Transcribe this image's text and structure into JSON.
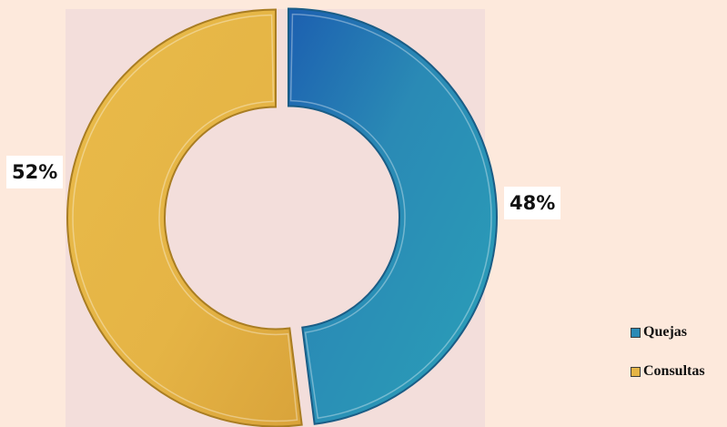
{
  "colors": {
    "background": "#fde9dc",
    "plot_area": "#f3dedb",
    "quejas": "#2a8ab5",
    "consultas": "#e5b445"
  },
  "chart_data": {
    "type": "pie",
    "variant": "doughnut",
    "exploded": true,
    "title": "",
    "series": [
      {
        "categories": [
          "Quejas",
          "Consultas"
        ],
        "values": [
          48,
          52
        ],
        "labels": [
          "48%",
          "52%"
        ],
        "colors": [
          "#2a8ab5",
          "#e5b445"
        ]
      }
    ],
    "legend": {
      "position": "bottom-right",
      "entries": [
        "Quejas",
        "Consultas"
      ]
    }
  }
}
